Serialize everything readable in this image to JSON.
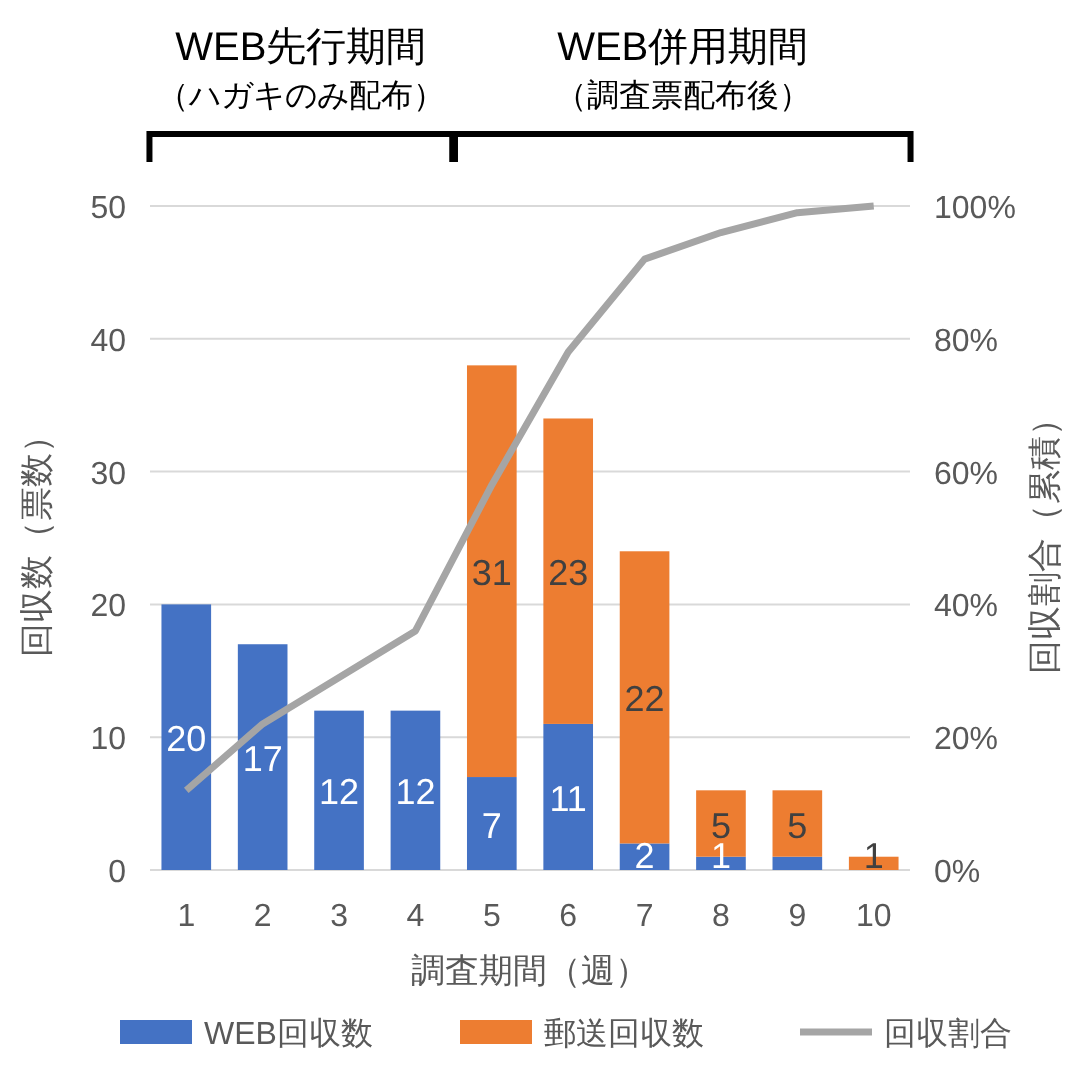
{
  "chart_data": {
    "type": "bar",
    "stacked": true,
    "xlabel": "調査期間（週）",
    "ylabel": "回収数（票数）",
    "y2label": "回収割合（累積）",
    "categories": [
      "1",
      "2",
      "3",
      "4",
      "5",
      "6",
      "7",
      "8",
      "9",
      "10"
    ],
    "series": [
      {
        "name": "WEB回収数",
        "color": "#4472c4",
        "values": [
          20,
          17,
          12,
          12,
          7,
          11,
          2,
          1,
          1,
          0
        ],
        "value_labels": [
          "20",
          "17",
          "12",
          "12",
          "7",
          "11",
          "2",
          "1",
          null,
          null
        ]
      },
      {
        "name": "郵送回収数",
        "color": "#ed7d31",
        "values": [
          0,
          0,
          0,
          0,
          31,
          23,
          22,
          5,
          5,
          1
        ],
        "value_labels": [
          null,
          null,
          null,
          null,
          "31",
          "23",
          "22",
          "5",
          "5",
          "1"
        ]
      },
      {
        "name": "回収割合",
        "type": "line",
        "axis": "y2",
        "color": "#a5a5a5",
        "values": [
          12,
          22,
          29,
          36,
          58,
          78,
          92,
          96,
          99,
          100
        ]
      }
    ],
    "ylim": [
      0,
      50
    ],
    "yticks": [
      0,
      10,
      20,
      30,
      40,
      50
    ],
    "y2lim": [
      0,
      100
    ],
    "y2ticks": [
      {
        "value": 0,
        "label": "0%"
      },
      {
        "value": 20,
        "label": "20%"
      },
      {
        "value": 40,
        "label": "40%"
      },
      {
        "value": 60,
        "label": "60%"
      },
      {
        "value": 80,
        "label": "80%"
      },
      {
        "value": 100,
        "label": "100%"
      }
    ],
    "grid": "y",
    "legend": "bottom",
    "marker": "none",
    "annotations": [
      "WEB先行期間",
      "（ハガキのみ配布）",
      "WEB併用期間",
      "（調査票配布後）"
    ]
  }
}
